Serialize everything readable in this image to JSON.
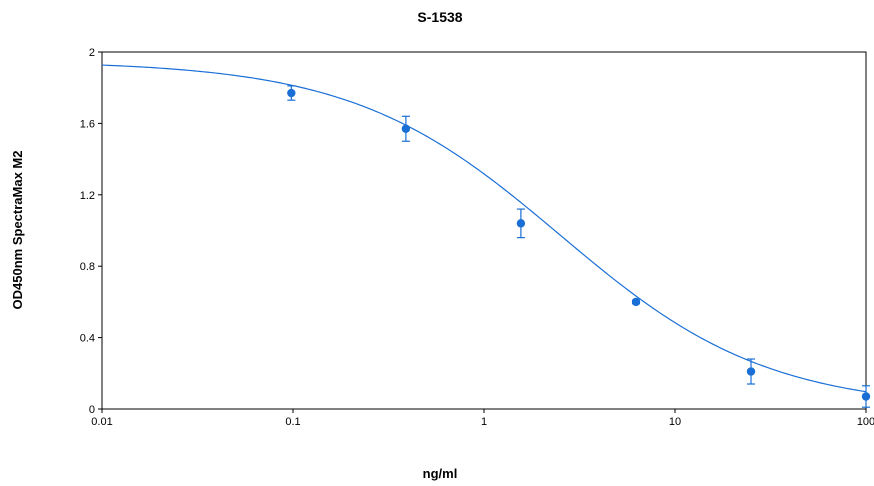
{
  "chart_data": {
    "type": "scatter",
    "title": "S-1538",
    "xlabel": "ng/ml",
    "ylabel": "OD450nm SpectraMax M2",
    "x_scale": "log",
    "xlim": [
      0.01,
      100
    ],
    "ylim": [
      0,
      2
    ],
    "x_ticks": [
      "0.01",
      "0.1",
      "1",
      "10",
      "100"
    ],
    "y_ticks": [
      "0",
      "0.4",
      "0.8",
      "1.2",
      "1.6",
      "2"
    ],
    "grid": false,
    "legend": "none",
    "color": "#1a6fd6",
    "points": [
      {
        "x": 0.098,
        "y": 1.77,
        "err": 0.04
      },
      {
        "x": 0.39,
        "y": 1.57,
        "err": 0.07
      },
      {
        "x": 1.56,
        "y": 1.04,
        "err": 0.08
      },
      {
        "x": 6.25,
        "y": 0.6,
        "err": 0.01
      },
      {
        "x": 25,
        "y": 0.21,
        "err": 0.07
      },
      {
        "x": 100,
        "y": 0.07,
        "err": 0.06
      }
    ],
    "fit": {
      "model": "4PL",
      "top": 1.95,
      "bottom": 0.0,
      "ec50": 2.5,
      "hill": 0.8
    }
  }
}
